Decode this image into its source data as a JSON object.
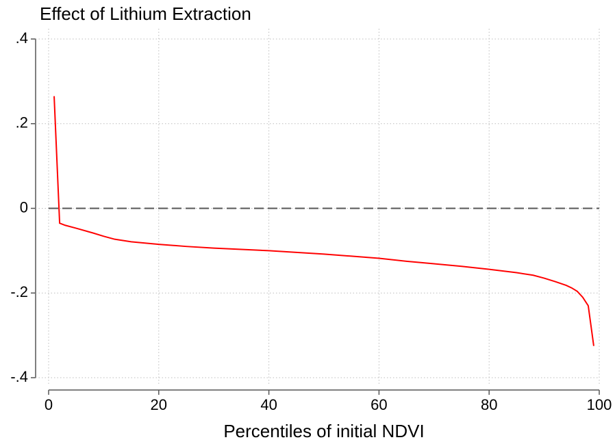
{
  "chart_data": {
    "type": "line",
    "title": "Effect of Lithium Extraction",
    "xlabel": "Percentiles of initial NDVI",
    "x": [
      1,
      2,
      3,
      5,
      8,
      10,
      12,
      15,
      20,
      25,
      30,
      35,
      40,
      45,
      50,
      55,
      60,
      65,
      70,
      75,
      80,
      85,
      88,
      90,
      92,
      94,
      95,
      96,
      97,
      98,
      99
    ],
    "series": [
      {
        "name": "Effect",
        "color": "#ff0000",
        "values": [
          0.265,
          -0.035,
          -0.04,
          -0.047,
          -0.058,
          -0.066,
          -0.073,
          -0.079,
          -0.085,
          -0.09,
          -0.094,
          -0.097,
          -0.1,
          -0.104,
          -0.108,
          -0.113,
          -0.118,
          -0.125,
          -0.131,
          -0.137,
          -0.144,
          -0.152,
          -0.158,
          -0.165,
          -0.173,
          -0.182,
          -0.188,
          -0.196,
          -0.21,
          -0.23,
          -0.325
        ]
      }
    ],
    "xlim": [
      0,
      100
    ],
    "xticks": [
      0,
      20,
      40,
      60,
      80,
      100
    ],
    "ylim": [
      -0.4,
      0.4
    ],
    "yticks": [
      {
        "value": -0.4,
        "label": "-.4"
      },
      {
        "value": -0.2,
        "label": "-.2"
      },
      0,
      {
        "value": 0.2,
        "label": ".2"
      },
      {
        "value": 0.4,
        "label": ".4"
      }
    ],
    "grid": true,
    "yline": 0
  }
}
